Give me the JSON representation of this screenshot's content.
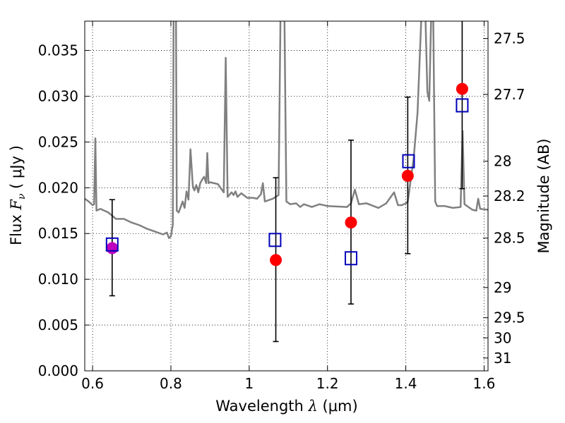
{
  "chart_data": {
    "type": "scatter",
    "xlabel": {
      "prefix": "Wavelength  ",
      "lambda": "λ",
      "unit": " (μm)"
    },
    "ylabel": {
      "prefix": "Flux  ",
      "symbol": "F",
      "sub": "ν",
      "unit": "  ( μJy )"
    },
    "ylabel_right": "Magnitude (AB)",
    "xlim": [
      0.58,
      1.61
    ],
    "ylim": [
      0.0,
      0.0382
    ],
    "x_ticks": [
      0.6,
      0.8,
      1.0,
      1.2,
      1.4,
      1.6
    ],
    "x_tick_labels": [
      "0.6",
      "0.8",
      "1",
      "1.2",
      "1.4",
      "1.6"
    ],
    "y_ticks": [
      0.0,
      0.005,
      0.01,
      0.015,
      0.02,
      0.025,
      0.03,
      0.035
    ],
    "y_tick_labels": [
      "0.000",
      "0.005",
      "0.010",
      "0.015",
      "0.020",
      "0.025",
      "0.030",
      "0.035"
    ],
    "magnitude_ticks": [
      {
        "label": "27.5",
        "flux": 0.0363
      },
      {
        "label": "27.7",
        "flux": 0.0302
      },
      {
        "label": "28",
        "flux": 0.0229
      },
      {
        "label": "28.2",
        "flux": 0.0191
      },
      {
        "label": "28.5",
        "flux": 0.0145
      },
      {
        "label": "29",
        "flux": 0.0091
      },
      {
        "label": "29.5",
        "flux": 0.0058
      },
      {
        "label": "30",
        "flux": 0.0036
      },
      {
        "label": "31",
        "flux": 0.0014
      }
    ],
    "grid": true,
    "colors": {
      "model": "#808080",
      "observed": "#ff0000",
      "observed_first": "#bf00bf",
      "model_band": "#0000bb",
      "errorbar": "#000000"
    },
    "series": [
      {
        "type": "line",
        "points": [
          [
            0.58,
            0.0188
          ],
          [
            0.59,
            0.0185
          ],
          [
            0.6,
            0.0181
          ],
          [
            0.604,
            0.0182
          ],
          [
            0.607,
            0.0254
          ],
          [
            0.61,
            0.0175
          ],
          [
            0.62,
            0.0177
          ],
          [
            0.64,
            0.0173
          ],
          [
            0.66,
            0.0166
          ],
          [
            0.68,
            0.0166
          ],
          [
            0.7,
            0.0162
          ],
          [
            0.72,
            0.0159
          ],
          [
            0.74,
            0.0155
          ],
          [
            0.76,
            0.0152
          ],
          [
            0.78,
            0.0149
          ],
          [
            0.79,
            0.0151
          ],
          [
            0.795,
            0.0145
          ],
          [
            0.8,
            0.0147
          ],
          [
            0.805,
            0.016
          ],
          [
            0.807,
            0.039
          ],
          [
            0.813,
            0.039
          ],
          [
            0.815,
            0.0175
          ],
          [
            0.82,
            0.0173
          ],
          [
            0.83,
            0.0185
          ],
          [
            0.835,
            0.0178
          ],
          [
            0.84,
            0.0196
          ],
          [
            0.845,
            0.0187
          ],
          [
            0.85,
            0.0242
          ],
          [
            0.856,
            0.0202
          ],
          [
            0.86,
            0.0197
          ],
          [
            0.865,
            0.0203
          ],
          [
            0.87,
            0.0195
          ],
          [
            0.875,
            0.0205
          ],
          [
            0.88,
            0.0209
          ],
          [
            0.885,
            0.0212
          ],
          [
            0.89,
            0.0205
          ],
          [
            0.893,
            0.0238
          ],
          [
            0.896,
            0.0205
          ],
          [
            0.9,
            0.0206
          ],
          [
            0.92,
            0.0204
          ],
          [
            0.935,
            0.0195
          ],
          [
            0.94,
            0.0342
          ],
          [
            0.945,
            0.019
          ],
          [
            0.955,
            0.0195
          ],
          [
            0.96,
            0.0192
          ],
          [
            0.965,
            0.0196
          ],
          [
            0.97,
            0.019
          ],
          [
            0.98,
            0.0194
          ],
          [
            0.995,
            0.0189
          ],
          [
            1.01,
            0.0189
          ],
          [
            1.02,
            0.0188
          ],
          [
            1.03,
            0.0193
          ],
          [
            1.035,
            0.0205
          ],
          [
            1.04,
            0.0185
          ],
          [
            1.06,
            0.0188
          ],
          [
            1.075,
            0.0192
          ],
          [
            1.08,
            0.039
          ],
          [
            1.09,
            0.039
          ],
          [
            1.095,
            0.0185
          ],
          [
            1.105,
            0.0182
          ],
          [
            1.12,
            0.0183
          ],
          [
            1.13,
            0.0179
          ],
          [
            1.14,
            0.0182
          ],
          [
            1.16,
            0.0179
          ],
          [
            1.18,
            0.0182
          ],
          [
            1.2,
            0.018
          ],
          [
            1.25,
            0.0179
          ],
          [
            1.26,
            0.0183
          ],
          [
            1.27,
            0.0198
          ],
          [
            1.28,
            0.0182
          ],
          [
            1.3,
            0.0183
          ],
          [
            1.33,
            0.0178
          ],
          [
            1.35,
            0.0183
          ],
          [
            1.37,
            0.0195
          ],
          [
            1.38,
            0.0181
          ],
          [
            1.39,
            0.0181
          ],
          [
            1.4,
            0.0183
          ],
          [
            1.405,
            0.0185
          ],
          [
            1.42,
            0.0232
          ],
          [
            1.43,
            0.0282
          ],
          [
            1.44,
            0.039
          ],
          [
            1.45,
            0.039
          ],
          [
            1.455,
            0.0305
          ],
          [
            1.46,
            0.0295
          ],
          [
            1.465,
            0.039
          ],
          [
            1.47,
            0.039
          ],
          [
            1.475,
            0.0185
          ],
          [
            1.48,
            0.018
          ],
          [
            1.5,
            0.018
          ],
          [
            1.52,
            0.0178
          ],
          [
            1.54,
            0.0179
          ],
          [
            1.545,
            0.0262
          ],
          [
            1.55,
            0.0182
          ],
          [
            1.57,
            0.0176
          ],
          [
            1.58,
            0.0175
          ],
          [
            1.585,
            0.0188
          ],
          [
            1.59,
            0.0177
          ],
          [
            1.61,
            0.0176
          ]
        ]
      },
      {
        "type": "scatter",
        "marker": "circle",
        "x": [
          0.65,
          1.068,
          1.26,
          1.405,
          1.544
        ],
        "y": [
          0.0134,
          0.0121,
          0.0162,
          0.0213,
          0.0308
        ],
        "yerr_low": [
          0.0082,
          0.0032,
          0.0073,
          0.0128,
          0.0199
        ],
        "yerr_high": [
          0.0187,
          0.0211,
          0.0252,
          0.0299,
          0.0392
        ]
      },
      {
        "type": "scatter",
        "marker": "square",
        "x": [
          0.65,
          1.066,
          1.26,
          1.407,
          1.544
        ],
        "y": [
          0.0138,
          0.0143,
          0.0123,
          0.0229,
          0.029
        ]
      }
    ]
  }
}
